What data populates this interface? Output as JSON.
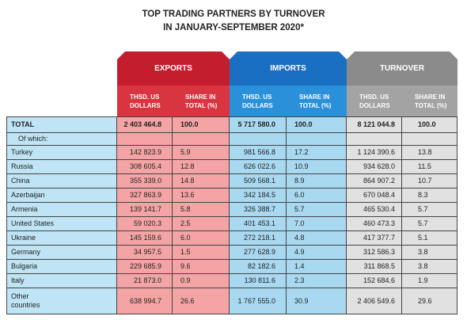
{
  "title": "TOP TRADING PARTNERS BY TURNOVER\nIN JANUARY-SEPTEMBER 2020*",
  "groups": [
    "EXPORTS",
    "IMPORTS",
    "TURNOVER"
  ],
  "subheaders": [
    "THSD. US\nDOLLARS",
    "SHARE IN\nTOTAL (%)",
    "THSD. US\nDOLLARS",
    "SHARE IN\nTOTAL (%)",
    "THSD. US\nDOLLARS",
    "SHARE IN\nTOTAL (%)"
  ],
  "total": [
    "TOTAL",
    "2 403 464.8",
    "100.0",
    "5 717 580.0",
    "100.0",
    "8 121 044.8",
    "100.0"
  ],
  "of_which": "Of which:",
  "rows": [
    [
      "Turkey",
      "142 823.9",
      "5.9",
      "981 566.8",
      "17.2",
      "1 124 390.6",
      "13.8"
    ],
    [
      "Russia",
      "308 605.4",
      "12.8",
      "626 022.6",
      "10.9",
      "934 628.0",
      "11.5"
    ],
    [
      "China",
      "355 339.0",
      "14.8",
      "509 568.1",
      "8.9",
      "864 907.2",
      "10.7"
    ],
    [
      "Azerbaijan",
      "327 863.9",
      "13.6",
      "342 184.5",
      "6.0",
      "670 048.4",
      "8.3"
    ],
    [
      "Armenia",
      "139 141.7",
      "5.8",
      "326 388.7",
      "5.7",
      "465 530.4",
      "5.7"
    ],
    [
      "United States",
      "59 020.3",
      "2.5",
      "401 453.1",
      "7.0",
      "460 473.3",
      "5.7"
    ],
    [
      "Ukraine",
      "145 159.6",
      "6.0",
      "272 218.1",
      "4.8",
      "417 377.7",
      "5.1"
    ],
    [
      "Germany",
      "34 957.5",
      "1.5",
      "277 628.9",
      "4.9",
      "312 586.3",
      "3.8"
    ],
    [
      "Bulgaria",
      "229 685.9",
      "9.6",
      "82 182.6",
      "1.4",
      "311 868.5",
      "3.8"
    ],
    [
      "Italy",
      "21 873.0",
      "0.9",
      "130 811.6",
      "2.3",
      "152 684.6",
      "1.9"
    ],
    [
      "Other\ncountries",
      "638 994.7",
      "26.6",
      "1 767 555.0",
      "30.9",
      "2 406 549.6",
      "29.6"
    ]
  ]
}
